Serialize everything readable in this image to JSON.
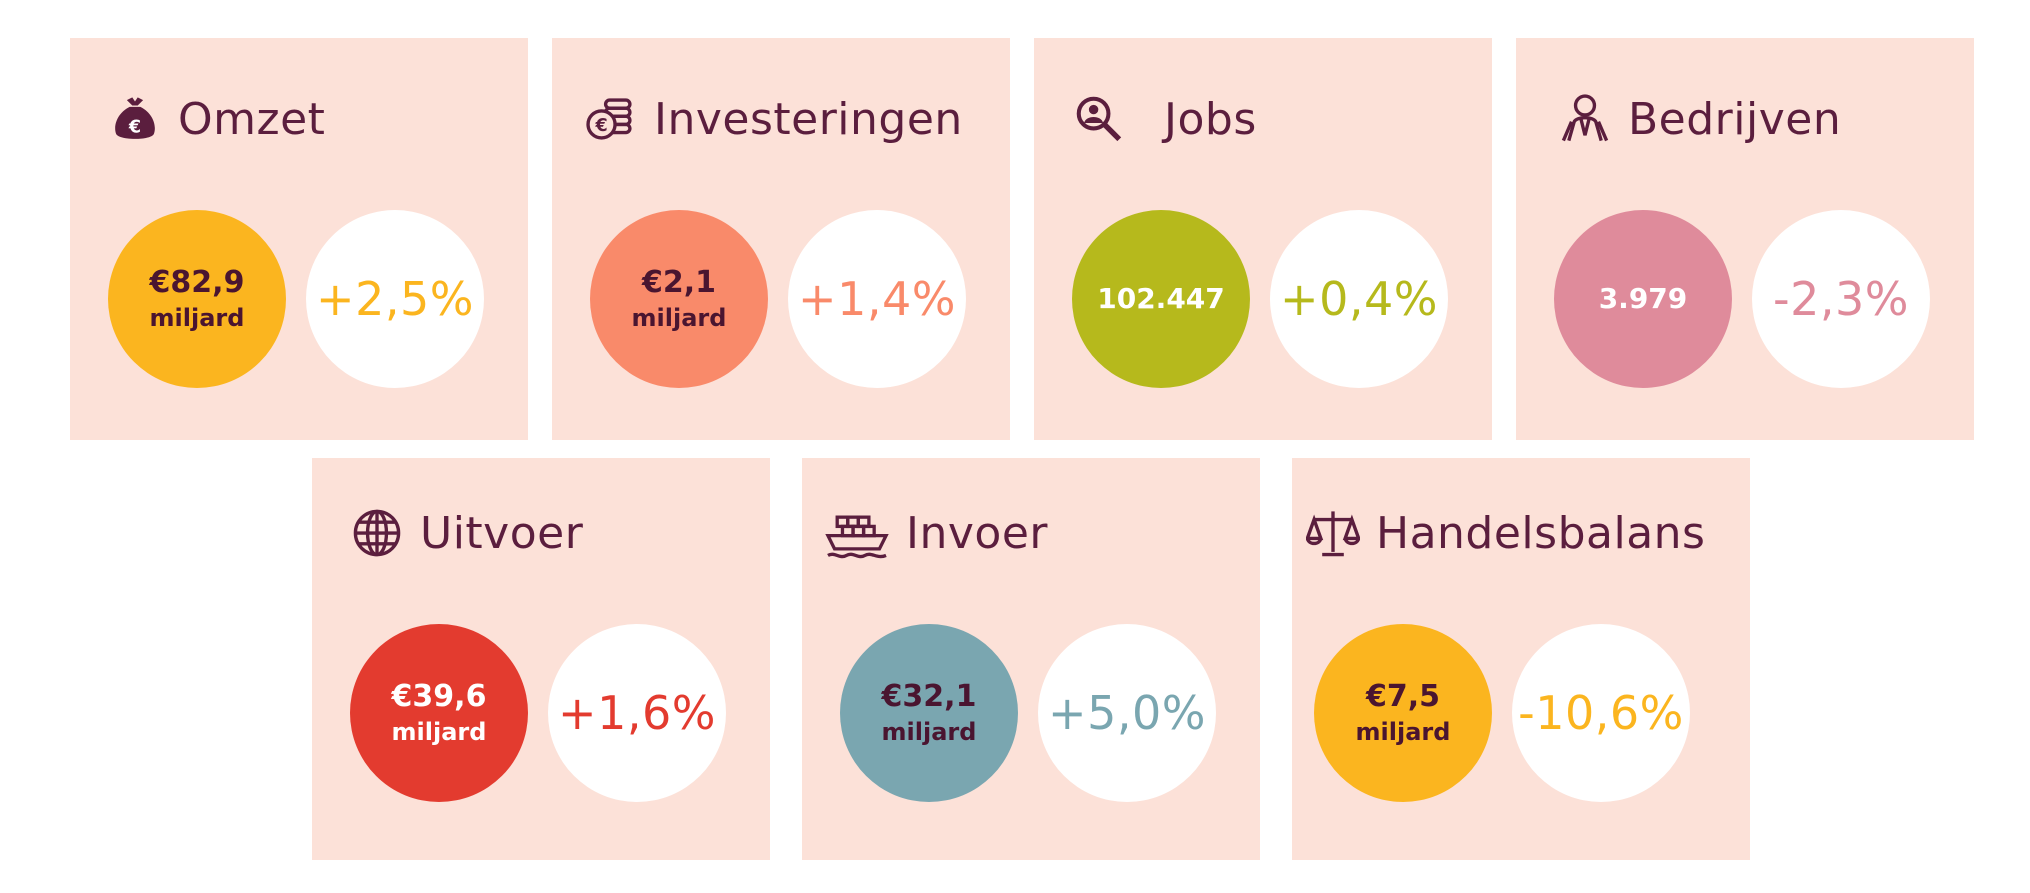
{
  "cards": [
    {
      "title": "Omzet",
      "icon": "money-bag-icon",
      "value": "€82,9",
      "unit": "miljard",
      "change": "+2,5%",
      "color": "#fbb51f"
    },
    {
      "title": "Investeringen",
      "icon": "coins-icon",
      "value": "€2,1",
      "unit": "miljard",
      "change": "+1,4%",
      "color": "#f98a6a"
    },
    {
      "title": "Jobs",
      "icon": "search-person-icon",
      "value": "102.447",
      "unit": "",
      "change": "+0,4%",
      "color": "#b6b91c"
    },
    {
      "title": "Bedrijven",
      "icon": "businessman-icon",
      "value": "3.979",
      "unit": "",
      "change": "-2,3%",
      "color": "#df8b9b"
    },
    {
      "title": "Uitvoer",
      "icon": "globe-icon",
      "value": "€39,6",
      "unit": "miljard",
      "change": "+1,6%",
      "color": "#e33b2f"
    },
    {
      "title": "Invoer",
      "icon": "ship-icon",
      "value": "€32,1",
      "unit": "miljard",
      "change": "+5,0%",
      "color": "#7aa6b0"
    },
    {
      "title": "Handelsbalans",
      "icon": "scale-icon",
      "value": "€7,5",
      "unit": "miljard",
      "change": "-10,6%",
      "color": "#fbb51f"
    }
  ]
}
